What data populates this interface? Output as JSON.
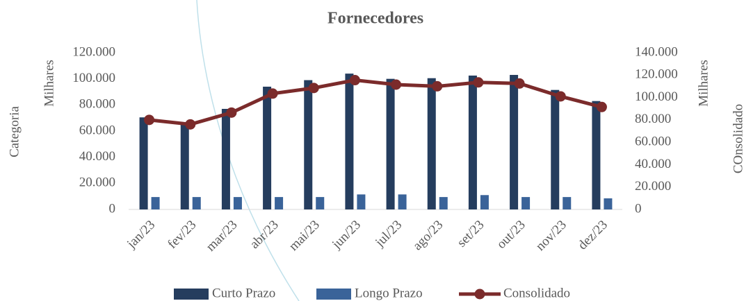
{
  "chart_data": {
    "type": "bar",
    "title": "Fornecedores",
    "y_label": "Milhares",
    "y_title": "Categoria",
    "y2_label": "Milhares",
    "y2_title": "COnsolidado",
    "categories": [
      "jan/23",
      "fev/23",
      "mar/23",
      "abr/23",
      "mai/23",
      "jun/23",
      "jul/23",
      "ago/23",
      "set/23",
      "out/23",
      "nov/23",
      "dez/23"
    ],
    "series": [
      {
        "name": "Curto Prazo",
        "type": "bar",
        "color": "#253d5e",
        "values": [
          70500,
          66000,
          77000,
          94000,
          99000,
          104000,
          100000,
          100500,
          102500,
          103000,
          91500,
          83000
        ]
      },
      {
        "name": "Longo Prazo",
        "type": "bar",
        "color": "#3a6399",
        "values": [
          9500,
          9500,
          9500,
          9500,
          9500,
          11500,
          11500,
          9500,
          11000,
          9500,
          9500,
          8500
        ]
      },
      {
        "name": "Consolidado",
        "type": "line",
        "axis": "y2",
        "color": "#7b2b2b",
        "values": [
          80000,
          76000,
          86500,
          103500,
          108500,
          115500,
          111500,
          110000,
          113500,
          112500,
          101000,
          91500
        ]
      }
    ],
    "ylim": [
      0,
      120000
    ],
    "yticks": [
      0,
      {
        "value": 20000,
        "label": "20.000"
      },
      {
        "value": 40000,
        "label": "40.000"
      },
      {
        "value": 60000,
        "label": "60.000"
      },
      {
        "value": 80000,
        "label": "80.000"
      },
      {
        "value": 100000,
        "label": "100.000"
      },
      {
        "value": 120000,
        "label": "120.000"
      }
    ],
    "y2lim": [
      0,
      140000
    ],
    "y2ticks": [
      0,
      {
        "value": 20000,
        "label": "20.000"
      },
      {
        "value": 40000,
        "label": "40.000"
      },
      {
        "value": 60000,
        "label": "60.000"
      },
      {
        "value": 80000,
        "label": "80.000"
      },
      {
        "value": 100000,
        "label": "100.000"
      },
      {
        "value": 120000,
        "label": "120.000"
      },
      {
        "value": 140000,
        "label": "140.000"
      }
    ],
    "legend": "bottom"
  }
}
